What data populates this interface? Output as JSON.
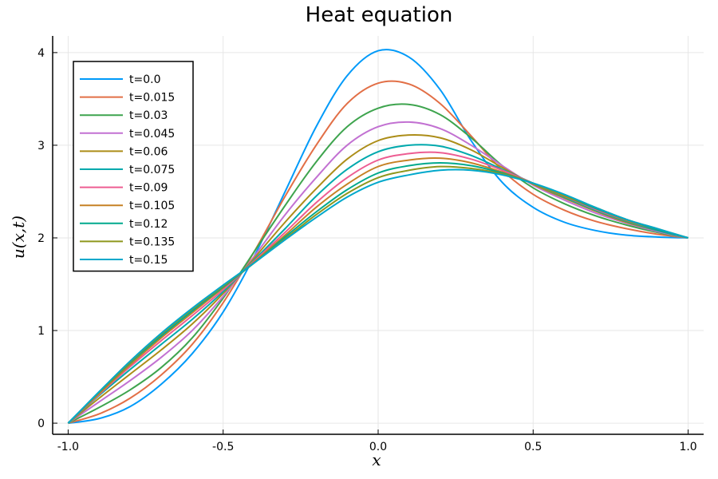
{
  "chart_data": {
    "type": "line",
    "title": "Heat equation",
    "xlabel": "x",
    "ylabel": "u(x,t)",
    "xlim": [
      -1.05,
      1.05
    ],
    "ylim": [
      -0.12,
      4.18
    ],
    "xticks": [
      -1.0,
      -0.5,
      0.0,
      0.5,
      1.0
    ],
    "xtick_labels": [
      "-1.0",
      "-0.5",
      "0.0",
      "0.5",
      "1.0"
    ],
    "yticks": [
      0,
      1,
      2,
      3,
      4
    ],
    "ytick_labels": [
      "0",
      "1",
      "2",
      "3",
      "4"
    ],
    "grid": true,
    "legend_position": "top-left",
    "x": [
      -1.0,
      -0.9,
      -0.8,
      -0.7,
      -0.6,
      -0.5,
      -0.4,
      -0.3,
      -0.2,
      -0.1,
      0.0,
      0.1,
      0.2,
      0.3,
      0.4,
      0.5,
      0.6,
      0.7,
      0.8,
      0.9,
      1.0
    ],
    "series": [
      {
        "name": "t=0.0",
        "color": "#009AF9",
        "values": [
          0.0,
          0.05,
          0.18,
          0.42,
          0.75,
          1.2,
          1.8,
          2.5,
          3.2,
          3.75,
          4.02,
          3.95,
          3.6,
          3.05,
          2.6,
          2.33,
          2.17,
          2.08,
          2.03,
          2.01,
          2.0
        ]
      },
      {
        "name": "t=0.015",
        "color": "#E26F46",
        "values": [
          0.0,
          0.1,
          0.27,
          0.52,
          0.85,
          1.3,
          1.85,
          2.45,
          3.0,
          3.45,
          3.67,
          3.66,
          3.45,
          3.1,
          2.73,
          2.47,
          2.3,
          2.18,
          2.1,
          2.04,
          2.0
        ]
      },
      {
        "name": "t=0.03",
        "color": "#3EA44E",
        "values": [
          0.0,
          0.17,
          0.36,
          0.6,
          0.92,
          1.35,
          1.85,
          2.35,
          2.82,
          3.2,
          3.4,
          3.44,
          3.33,
          3.08,
          2.78,
          2.54,
          2.37,
          2.24,
          2.14,
          2.06,
          2.0
        ]
      },
      {
        "name": "t=0.045",
        "color": "#C271D2",
        "values": [
          0.0,
          0.23,
          0.46,
          0.71,
          1.0,
          1.37,
          1.8,
          2.25,
          2.65,
          3.0,
          3.2,
          3.25,
          3.18,
          3.0,
          2.78,
          2.57,
          2.41,
          2.27,
          2.16,
          2.07,
          2.0
        ]
      },
      {
        "name": "t=0.06",
        "color": "#AC8D18",
        "values": [
          0.0,
          0.27,
          0.53,
          0.79,
          1.07,
          1.4,
          1.78,
          2.17,
          2.53,
          2.85,
          3.05,
          3.11,
          3.08,
          2.95,
          2.76,
          2.58,
          2.43,
          2.29,
          2.17,
          2.08,
          2.0
        ]
      },
      {
        "name": "t=0.075",
        "color": "#00A9AD",
        "values": [
          0.0,
          0.3,
          0.58,
          0.85,
          1.12,
          1.42,
          1.76,
          2.1,
          2.45,
          2.74,
          2.93,
          3.0,
          2.99,
          2.89,
          2.74,
          2.59,
          2.44,
          2.3,
          2.18,
          2.08,
          2.0
        ]
      },
      {
        "name": "t=0.09",
        "color": "#ED5D92",
        "values": [
          0.0,
          0.31,
          0.61,
          0.89,
          1.16,
          1.44,
          1.75,
          2.06,
          2.38,
          2.65,
          2.84,
          2.91,
          2.92,
          2.85,
          2.73,
          2.59,
          2.45,
          2.31,
          2.19,
          2.09,
          2.0
        ]
      },
      {
        "name": "t=0.105",
        "color": "#C68125",
        "values": [
          0.0,
          0.32,
          0.63,
          0.92,
          1.19,
          1.46,
          1.74,
          2.03,
          2.33,
          2.58,
          2.77,
          2.84,
          2.86,
          2.81,
          2.71,
          2.59,
          2.45,
          2.32,
          2.19,
          2.09,
          2.0
        ]
      },
      {
        "name": "t=0.12",
        "color": "#00A98D",
        "values": [
          0.0,
          0.33,
          0.65,
          0.94,
          1.21,
          1.47,
          1.73,
          2.01,
          2.28,
          2.52,
          2.7,
          2.78,
          2.81,
          2.78,
          2.7,
          2.59,
          2.46,
          2.32,
          2.2,
          2.09,
          2.0
        ]
      },
      {
        "name": "t=0.135",
        "color": "#8E971D",
        "values": [
          0.0,
          0.33,
          0.66,
          0.96,
          1.23,
          1.48,
          1.73,
          1.99,
          2.25,
          2.48,
          2.65,
          2.73,
          2.77,
          2.75,
          2.69,
          2.59,
          2.46,
          2.33,
          2.2,
          2.1,
          2.0
        ]
      },
      {
        "name": "t=0.15",
        "color": "#00A8CB",
        "values": [
          0.0,
          0.34,
          0.67,
          0.97,
          1.24,
          1.49,
          1.73,
          1.98,
          2.22,
          2.44,
          2.6,
          2.68,
          2.73,
          2.73,
          2.68,
          2.59,
          2.47,
          2.33,
          2.2,
          2.1,
          2.0
        ]
      }
    ]
  }
}
